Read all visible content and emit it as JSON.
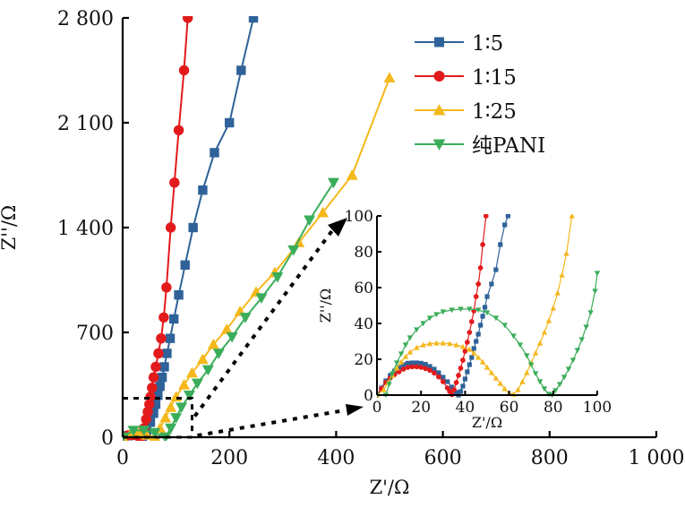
{
  "chart_data": [
    {
      "type": "line",
      "panel": "main",
      "title": "",
      "xlabel": "Z'/Ω",
      "ylabel": "Z''/Ω",
      "xlim": [
        0,
        1000
      ],
      "ylim": [
        0,
        2800
      ],
      "xticks": [
        0,
        200,
        400,
        600,
        800,
        1000
      ],
      "xtick_labels": [
        "0",
        "200",
        "400",
        "600",
        "800",
        "1 000"
      ],
      "yticks": [
        0,
        700,
        1400,
        2100,
        2800
      ],
      "ytick_labels": [
        "0",
        "700",
        "1 400",
        "2 100",
        "2 800"
      ],
      "grid": false,
      "legend_position": "top-right",
      "series": [
        {
          "name": "1∶5",
          "color": "#2f6299",
          "marker": "square",
          "x": [
            0,
            10,
            20,
            30,
            37,
            45,
            52,
            58,
            62,
            66,
            70,
            74,
            78,
            83,
            89,
            96,
            105,
            117,
            132,
            150,
            172,
            200,
            222,
            245
          ],
          "y": [
            0,
            10,
            17,
            12,
            2,
            40,
            100,
            160,
            220,
            280,
            340,
            400,
            470,
            560,
            660,
            790,
            950,
            1150,
            1400,
            1650,
            1900,
            2100,
            2450,
            2800
          ]
        },
        {
          "name": "1∶15",
          "color": "#e31a1c",
          "marker": "circle",
          "x": [
            0,
            10,
            18,
            28,
            34,
            40,
            44,
            47,
            50,
            52,
            55,
            58,
            62,
            67,
            72,
            77,
            82,
            90,
            97,
            105,
            115,
            122
          ],
          "y": [
            0,
            12,
            15,
            10,
            0,
            60,
            120,
            170,
            220,
            270,
            330,
            400,
            470,
            560,
            660,
            800,
            1000,
            1400,
            1700,
            2050,
            2450,
            2800
          ]
        },
        {
          "name": "1∶25",
          "color": "#f5b81c",
          "marker": "triangle-up",
          "x": [
            0,
            15,
            30,
            45,
            60,
            70,
            80,
            90,
            100,
            115,
            130,
            150,
            170,
            195,
            220,
            250,
            285,
            330,
            375,
            430,
            500
          ],
          "y": [
            0,
            25,
            28,
            15,
            0,
            60,
            130,
            200,
            270,
            350,
            430,
            520,
            620,
            720,
            840,
            970,
            1100,
            1300,
            1500,
            1750,
            2400
          ]
        },
        {
          "name": "纯PANI",
          "color": "#3aad5a",
          "marker": "triangle-down",
          "x": [
            0,
            20,
            40,
            60,
            80,
            90,
            100,
            110,
            125,
            140,
            160,
            180,
            205,
            230,
            260,
            290,
            320,
            350,
            395
          ],
          "y": [
            0,
            45,
            47,
            30,
            0,
            60,
            130,
            200,
            280,
            360,
            450,
            560,
            670,
            800,
            930,
            1070,
            1250,
            1450,
            1700
          ]
        }
      ]
    },
    {
      "type": "line",
      "panel": "inset",
      "title": "",
      "xlabel": "Z'/Ω",
      "ylabel": "Z''/Ω",
      "xlim": [
        0,
        100
      ],
      "ylim": [
        0,
        100
      ],
      "xticks": [
        0,
        20,
        40,
        60,
        80,
        100
      ],
      "xtick_labels": [
        "0",
        "20",
        "40",
        "60",
        "80",
        "100"
      ],
      "yticks": [
        0,
        20,
        40,
        60,
        80,
        100
      ],
      "ytick_labels": [
        "0",
        "20",
        "40",
        "60",
        "80",
        "100"
      ],
      "grid": false,
      "series": [
        {
          "name": "1∶5",
          "color": "#2f6299",
          "marker": "square",
          "x": [
            0,
            2,
            4,
            6,
            8,
            10,
            12,
            14,
            16,
            18,
            20,
            22,
            24,
            26,
            28,
            30,
            32,
            34,
            36,
            37,
            38,
            39,
            40,
            41,
            42,
            43,
            44,
            45,
            46,
            47,
            48,
            49,
            50,
            52,
            54,
            56,
            58,
            59.5
          ],
          "y": [
            0,
            4,
            8,
            11,
            13.5,
            15.5,
            17,
            17.8,
            18,
            18,
            17.8,
            17.2,
            16,
            14.5,
            12.5,
            10,
            7.5,
            4.5,
            1.5,
            0,
            2,
            5,
            9,
            13,
            17,
            21,
            26,
            30,
            34,
            39,
            44,
            49,
            55,
            62,
            70,
            84,
            95,
            100
          ]
        },
        {
          "name": "1∶15",
          "color": "#e31a1c",
          "marker": "circle",
          "x": [
            0,
            2,
            4,
            6,
            8,
            10,
            12,
            14,
            16,
            18,
            20,
            22,
            24,
            26,
            28,
            30,
            32,
            33,
            34,
            35,
            36,
            37,
            38,
            39,
            40,
            41,
            42,
            43,
            44,
            45,
            46,
            47,
            48,
            49.5
          ],
          "y": [
            0,
            3.5,
            7,
            9.5,
            11.5,
            13,
            14.5,
            15.5,
            15.8,
            15.8,
            15.5,
            14.8,
            13.8,
            12.3,
            10.2,
            7.5,
            4,
            2,
            0.3,
            3,
            7,
            11,
            15,
            19.5,
            24.5,
            29.5,
            35,
            41,
            47,
            55,
            62,
            71,
            84,
            100
          ]
        },
        {
          "name": "1∶25",
          "color": "#f5b81c",
          "marker": "triangle-up",
          "x": [
            0,
            3,
            5,
            7,
            9,
            11,
            13,
            15,
            18,
            21,
            24,
            27,
            30,
            33,
            36,
            39,
            42,
            44,
            46,
            48,
            50,
            52,
            54,
            56,
            58,
            60,
            62,
            64,
            66,
            68,
            70,
            72,
            74,
            76,
            78,
            80,
            82,
            84,
            86,
            88.5
          ],
          "y": [
            0,
            3,
            7,
            11,
            15,
            18.5,
            21.5,
            24,
            26.5,
            28,
            28.7,
            29,
            29,
            28.7,
            28,
            27,
            25.5,
            23.5,
            21,
            18.5,
            15.5,
            12.5,
            9.5,
            6.5,
            3.5,
            1,
            0.5,
            3,
            7.5,
            12.5,
            18,
            23.5,
            29,
            35,
            41.5,
            48.5,
            57,
            67,
            79,
            100
          ]
        },
        {
          "name": "纯PANI",
          "color": "#3aad5a",
          "marker": "triangle-down",
          "x": [
            0,
            4,
            5.5,
            7,
            9,
            11,
            13,
            15,
            18,
            21,
            24,
            27,
            30,
            34,
            38,
            42,
            46,
            50,
            54,
            58,
            62,
            65,
            68,
            70,
            72,
            74,
            76,
            78,
            79.5,
            81,
            83,
            85,
            87,
            89,
            91,
            93,
            95,
            97,
            99,
            100
          ],
          "y": [
            0,
            0,
            6,
            12,
            18,
            23,
            28,
            32,
            36.5,
            40,
            43,
            45,
            46.5,
            47.5,
            48,
            48,
            47.5,
            46,
            43,
            39,
            33,
            28,
            22,
            17,
            12,
            7.5,
            3.5,
            0.5,
            0,
            2.5,
            6,
            10,
            14.5,
            19.5,
            25,
            31,
            38,
            46,
            58,
            68
          ]
        }
      ]
    }
  ],
  "legend": [
    {
      "label": "1∶5",
      "color": "#2f6299",
      "marker": "square"
    },
    {
      "label": "1∶15",
      "color": "#e31a1c",
      "marker": "circle"
    },
    {
      "label": "1∶25",
      "color": "#f5b81c",
      "marker": "triangle-up"
    },
    {
      "label": "纯PANI",
      "color": "#3aad5a",
      "marker": "triangle-down"
    }
  ],
  "annotations": {
    "zoom_box": {
      "x_max": 130,
      "y_max": 260
    },
    "arrows": [
      "zoom-box-to-inset-top",
      "zoom-box-to-inset-bottom"
    ]
  }
}
